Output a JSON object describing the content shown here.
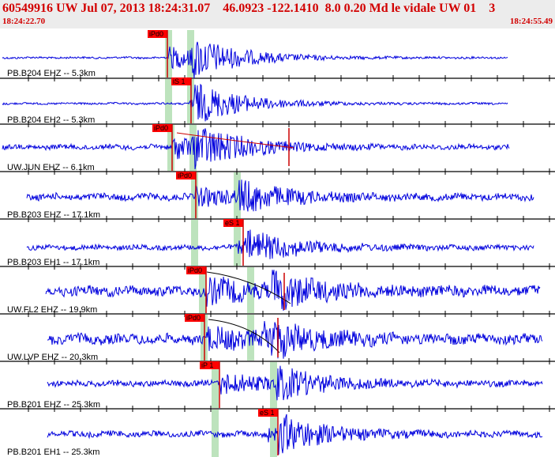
{
  "header": {
    "title": "60549916 UW Jul 07, 2013 18:24:31.07    46.0923 -122.1410  8.0 0.20 Md le vidale UW 01    3",
    "start_time": "18:24:22.70",
    "end_time": "18:24:55.49"
  },
  "colors": {
    "trace": "#0000dd",
    "title_text": "#d20000",
    "pick_box": "#ff0000",
    "pick_line": "#cc0000",
    "phase_window": "#bde3bd",
    "separator": "#000000"
  },
  "traces": [
    {
      "label": "PB.B204 EHZ -- 5.3km",
      "pick": "iPd0"
    },
    {
      "label": "PB.B204 EH2 -- 5.3km",
      "pick": "iS 1"
    },
    {
      "label": "UW.JUN EHZ -- 6.1km",
      "pick": "iPd0"
    },
    {
      "label": "PB.B203 EHZ -- 17.1km",
      "pick": "iPd0"
    },
    {
      "label": "PB.B203 EH1 -- 17.1km",
      "pick": "eS 1"
    },
    {
      "label": "UW.FL2 EHZ -- 19.9km",
      "pick": "iPd0"
    },
    {
      "label": "UW.LVP EHZ -- 20.3km",
      "pick": "iPd0"
    },
    {
      "label": "PB.B201 EHZ -- 25.3km",
      "pick": "iP 1"
    },
    {
      "label": "PB.B201 EH1 -- 25.3km",
      "pick": "eS 1"
    }
  ]
}
